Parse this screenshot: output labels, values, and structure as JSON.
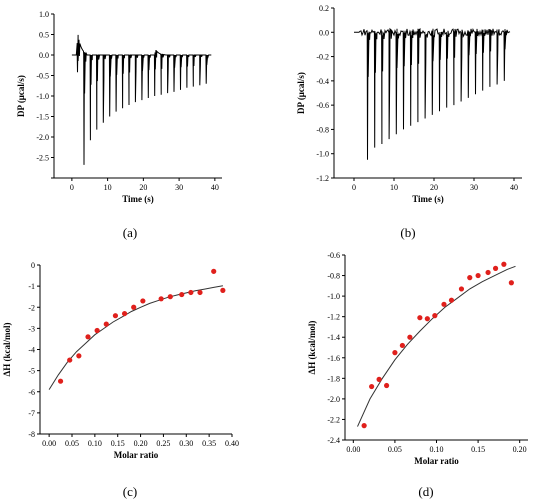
{
  "figure": {
    "captions": [
      "(a)",
      "(b)",
      "(c)",
      "(d)"
    ]
  },
  "chart_data": [
    {
      "type": "line",
      "xlabel": "Time (s)",
      "ylabel": "DP (μcal/s)",
      "xlim": [
        -5,
        42
      ],
      "ylim": [
        -3.0,
        1.0
      ],
      "xticks": [
        0,
        10,
        20,
        30,
        40
      ],
      "yticks": [
        -3.0,
        -2.5,
        -2.0,
        -1.5,
        -1.0,
        -0.5,
        0.0,
        0.5,
        1.0
      ],
      "yticklabels": [
        "",
        "-2.5",
        "-2.0",
        "-1.5",
        "-1.0",
        "-0.5",
        "0.0",
        "0.5",
        "1.0"
      ],
      "baseline": 0.0,
      "spike_times": [
        1.5,
        3.3,
        5.1,
        6.9,
        8.7,
        10.5,
        12.3,
        14.1,
        15.9,
        17.7,
        19.5,
        21.3,
        23.1,
        24.9,
        26.7,
        28.5,
        30.3,
        32.1,
        33.9,
        35.7,
        37.5
      ],
      "spike_minima": [
        -0.42,
        -2.68,
        -2.08,
        -1.82,
        -1.65,
        -1.5,
        -1.38,
        -1.3,
        -1.22,
        -1.15,
        -1.1,
        -1.05,
        -1.0,
        -0.97,
        -0.93,
        -0.9,
        -0.85,
        -0.8,
        -0.77,
        -0.74,
        -0.7
      ],
      "bumps": [
        {
          "t": 1.6,
          "peak": 0.58
        },
        {
          "t": 23.5,
          "peak": 0.12
        }
      ]
    },
    {
      "type": "line",
      "xlabel": "Time (s)",
      "ylabel": "DP (μcal/s)",
      "xlim": [
        -5,
        42
      ],
      "ylim": [
        -1.2,
        0.2
      ],
      "xticks": [
        0,
        10,
        20,
        30,
        40
      ],
      "yticks": [
        -1.2,
        -1.0,
        -0.8,
        -0.6,
        -0.4,
        -0.2,
        0.0,
        0.2
      ],
      "yticklabels": [
        "-1.2",
        "-1.0",
        "-0.8",
        "-0.6",
        "-0.4",
        "-0.2",
        "0.0",
        "0.2"
      ],
      "baseline": 0.0,
      "spike_times": [
        3.3,
        5.1,
        6.9,
        8.7,
        10.5,
        12.3,
        14.1,
        15.9,
        17.7,
        19.5,
        21.3,
        23.1,
        24.9,
        26.7,
        28.5,
        30.3,
        32.1,
        33.9,
        35.7,
        37.5
      ],
      "spike_minima": [
        -1.05,
        -0.95,
        -0.92,
        -0.88,
        -0.84,
        -0.8,
        -0.77,
        -0.74,
        -0.71,
        -0.68,
        -0.65,
        -0.62,
        -0.6,
        -0.57,
        -0.54,
        -0.51,
        -0.48,
        -0.45,
        -0.43,
        -0.4
      ],
      "noise_amplitude": 0.04,
      "noise_range": [
        1.5,
        39
      ]
    },
    {
      "type": "scatter",
      "xlabel": "Molar ratio",
      "ylabel": "ΔH (kcal/mol)",
      "xlim": [
        -0.02,
        0.4
      ],
      "ylim": [
        -8,
        0
      ],
      "xticks": [
        0.0,
        0.05,
        0.1,
        0.15,
        0.2,
        0.25,
        0.3,
        0.35,
        0.4
      ],
      "xticklabels": [
        "0.00",
        "0.05",
        "0.10",
        "0.15",
        "0.20",
        "0.25",
        "0.30",
        "0.35",
        "0.40"
      ],
      "yticks": [
        -8,
        -7,
        -6,
        -5,
        -4,
        -3,
        -2,
        -1,
        0
      ],
      "points": {
        "x": [
          0.025,
          0.045,
          0.065,
          0.085,
          0.105,
          0.125,
          0.145,
          0.165,
          0.185,
          0.205,
          0.245,
          0.265,
          0.29,
          0.31,
          0.33,
          0.36,
          0.38
        ],
        "y": [
          -5.5,
          -4.5,
          -4.3,
          -3.4,
          -3.1,
          -2.8,
          -2.4,
          -2.3,
          -2.0,
          -1.7,
          -1.6,
          -1.5,
          -1.4,
          -1.3,
          -1.3,
          -0.3,
          -1.2
        ]
      },
      "fit": {
        "x": [
          0.0,
          0.02,
          0.04,
          0.06,
          0.08,
          0.1,
          0.12,
          0.14,
          0.16,
          0.18,
          0.2,
          0.22,
          0.24,
          0.26,
          0.28,
          0.3,
          0.32,
          0.34,
          0.36,
          0.38
        ],
        "y": [
          -5.9,
          -5.2,
          -4.6,
          -4.1,
          -3.7,
          -3.3,
          -3.0,
          -2.7,
          -2.45,
          -2.2,
          -2.0,
          -1.82,
          -1.67,
          -1.53,
          -1.42,
          -1.32,
          -1.22,
          -1.14,
          -1.06,
          -0.98
        ]
      },
      "point_color": "#e0201c",
      "fit_color": "#333333"
    },
    {
      "type": "scatter",
      "xlabel": "Molar ratio",
      "ylabel": "ΔH (kcal/mol)",
      "xlim": [
        -0.01,
        0.21
      ],
      "ylim": [
        -2.4,
        -0.6
      ],
      "xticks": [
        0.0,
        0.05,
        0.1,
        0.15,
        0.2
      ],
      "xticklabels": [
        "0.00",
        "0.05",
        "0.10",
        "0.15",
        "0.20"
      ],
      "yticks": [
        -2.4,
        -2.2,
        -2.0,
        -1.8,
        -1.6,
        -1.4,
        -1.2,
        -1.0,
        -0.8,
        -0.6
      ],
      "yticklabels": [
        "-2.4",
        "-2.2",
        "-2.0",
        "-1.8",
        "-1.6",
        "-1.4",
        "-1.2",
        "-1.0",
        "-0.8",
        "-0.6"
      ],
      "points": {
        "x": [
          0.013,
          0.022,
          0.031,
          0.04,
          0.05,
          0.059,
          0.068,
          0.08,
          0.089,
          0.098,
          0.109,
          0.118,
          0.13,
          0.14,
          0.15,
          0.162,
          0.171,
          0.181,
          0.19
        ],
        "y": [
          -2.26,
          -1.88,
          -1.81,
          -1.87,
          -1.55,
          -1.48,
          -1.4,
          -1.21,
          -1.22,
          -1.19,
          -1.08,
          -1.04,
          -0.93,
          -0.82,
          -0.8,
          -0.77,
          -0.73,
          -0.69,
          -0.87
        ]
      },
      "fit": {
        "x": [
          0.005,
          0.02,
          0.035,
          0.05,
          0.065,
          0.08,
          0.095,
          0.11,
          0.125,
          0.14,
          0.155,
          0.17,
          0.185,
          0.195
        ],
        "y": [
          -2.27,
          -2.0,
          -1.8,
          -1.62,
          -1.47,
          -1.34,
          -1.22,
          -1.11,
          -1.02,
          -0.93,
          -0.86,
          -0.8,
          -0.74,
          -0.71
        ]
      },
      "point_color": "#e0201c",
      "fit_color": "#333333"
    }
  ]
}
